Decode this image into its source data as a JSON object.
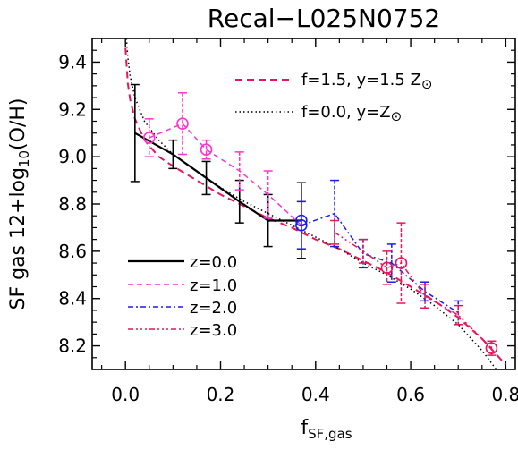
{
  "chart_data": {
    "type": "line",
    "title": "Recal−L025N0752",
    "xlabel": "f",
    "xlabel_sub": "SF,gas",
    "ylabel": "SF  gas  12+log",
    "ylabel_sub": "10",
    "ylabel_tail": "(O/H)",
    "xlim": [
      -0.07,
      0.82
    ],
    "ylim": [
      8.1,
      9.5
    ],
    "xticks": [
      0.0,
      0.2,
      0.4,
      0.6,
      0.8
    ],
    "xtick_labels": [
      "0.0",
      "0.2",
      "0.4",
      "0.6",
      "0.8"
    ],
    "yticks": [
      8.2,
      8.4,
      8.6,
      8.8,
      9.0,
      9.2,
      9.4
    ],
    "ytick_labels": [
      "8.2",
      "8.4",
      "8.6",
      "8.8",
      "9.0",
      "9.2",
      "9.4"
    ],
    "grid": false,
    "legend_top": [
      {
        "label": "f=1.5, y=1.5 Z",
        "sun": "⊙",
        "color": "#e8155a",
        "dash": "8,5",
        "width": 2
      },
      {
        "label": "f=0.0, y=Z",
        "sun": "⊙",
        "color": "#000000",
        "dash": "1.5,3",
        "width": 1.5
      }
    ],
    "legend_bottom": [
      {
        "label": "z=0.0",
        "color": "#000000",
        "dash": "",
        "width": 2.2
      },
      {
        "label": "z=1.0",
        "color": "#ff33cc",
        "dash": "6,4",
        "width": 1.5
      },
      {
        "label": "z=2.0",
        "color": "#1a1aee",
        "dash": "6,3,2,3",
        "width": 1.5
      },
      {
        "label": "z=3.0",
        "color": "#e8155a",
        "dash": "6,3,2,3,2,3,2,3",
        "width": 1.5
      }
    ],
    "models": [
      {
        "name": "f=1.5, y=1.5 Z⊙",
        "color": "#e8155a",
        "dash": "8,5",
        "width": 2,
        "x": [
          0.0,
          0.005,
          0.01,
          0.02,
          0.04,
          0.07,
          0.1,
          0.15,
          0.2,
          0.25,
          0.3,
          0.35,
          0.4,
          0.45,
          0.5,
          0.55,
          0.6,
          0.65,
          0.7,
          0.75,
          0.8
        ],
        "y": [
          9.46,
          9.31,
          9.24,
          9.16,
          9.07,
          9.0,
          8.96,
          8.9,
          8.84,
          8.79,
          8.74,
          8.7,
          8.65,
          8.61,
          8.56,
          8.51,
          8.45,
          8.39,
          8.32,
          8.23,
          8.12
        ]
      },
      {
        "name": "f=0.0, y=Z⊙",
        "color": "#000000",
        "dash": "1.5,3",
        "width": 1.5,
        "x": [
          0.002,
          0.005,
          0.01,
          0.02,
          0.04,
          0.07,
          0.1,
          0.15,
          0.2,
          0.25,
          0.3,
          0.35,
          0.4,
          0.45,
          0.5,
          0.55,
          0.6,
          0.65,
          0.7,
          0.75,
          0.78
        ],
        "y": [
          9.5,
          9.42,
          9.34,
          9.25,
          9.15,
          9.07,
          9.01,
          8.94,
          8.87,
          8.81,
          8.76,
          8.71,
          8.66,
          8.61,
          8.55,
          8.5,
          8.44,
          8.37,
          8.29,
          8.18,
          8.1
        ]
      }
    ],
    "series": [
      {
        "name": "z=0.0",
        "color": "#000000",
        "dash": "",
        "width": 2.2,
        "x": [
          0.02,
          0.1,
          0.17,
          0.24,
          0.3,
          0.37
        ],
        "y": [
          9.1,
          9.01,
          8.91,
          8.81,
          8.73,
          8.73
        ],
        "err": [
          0.205,
          0.06,
          0.07,
          0.09,
          0.11,
          0.16
        ],
        "circle_index": 5
      },
      {
        "name": "z=1.0",
        "color": "#ff33cc",
        "dash": "6,4",
        "width": 1.5,
        "x": [
          0.05,
          0.12,
          0.17,
          0.24,
          0.3,
          0.37
        ],
        "y": [
          9.08,
          9.14,
          9.03,
          8.94,
          8.84,
          8.71
        ],
        "err": [
          0.08,
          0.13,
          0.04,
          0.08,
          0.1,
          0.1
        ],
        "circle_indices": [
          0,
          1,
          2
        ]
      },
      {
        "name": "z=2.0",
        "color": "#1a1aee",
        "dash": "6,3,2,3",
        "width": 1.5,
        "x": [
          0.37,
          0.44,
          0.5,
          0.56,
          0.63,
          0.7
        ],
        "y": [
          8.71,
          8.76,
          8.59,
          8.55,
          8.43,
          8.34
        ],
        "err": [
          0.1,
          0.14,
          0.06,
          0.08,
          0.04,
          0.05
        ],
        "circle_index": 0
      },
      {
        "name": "z=3.0",
        "color": "#e8155a",
        "dash": "6,3,2,3,2,3,2,3",
        "width": 1.5,
        "x": [
          0.44,
          0.5,
          0.55,
          0.58,
          0.63,
          0.7,
          0.77
        ],
        "y": [
          8.68,
          8.6,
          8.53,
          8.55,
          8.41,
          8.33,
          8.19
        ],
        "err": [
          0.05,
          0.05,
          0.07,
          0.17,
          0.05,
          0.04,
          0.03
        ],
        "circle_indices": [
          2,
          3,
          6
        ]
      }
    ]
  }
}
